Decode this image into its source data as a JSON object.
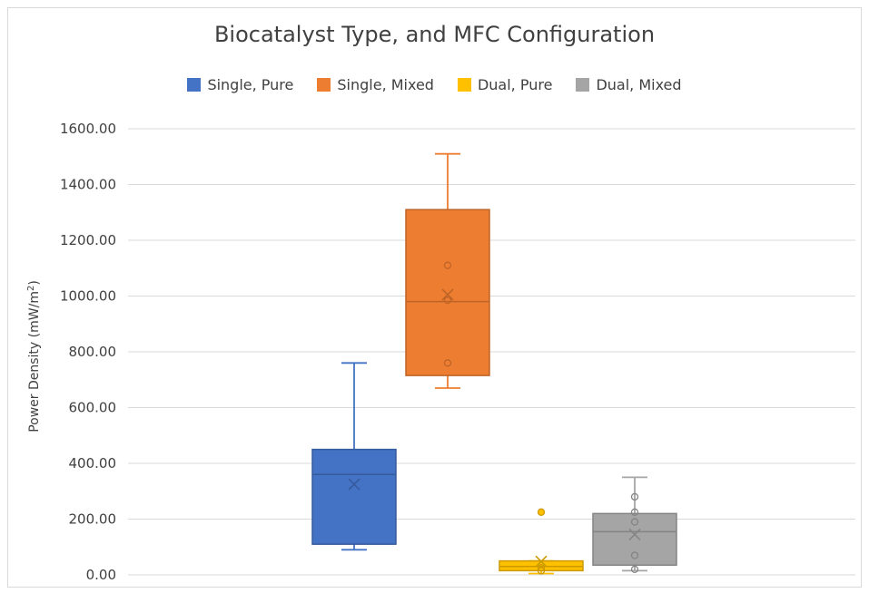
{
  "chart_data": {
    "type": "box",
    "title": "Biocatalyst Type, and MFC Configuration",
    "ylabel": "Power Density (mW/m²)",
    "ylabel_main": "Power Density (mW/m",
    "ylabel_sup": "2",
    "ylabel_end": ")",
    "ylim": [
      0,
      1600
    ],
    "yticks": [
      "0.00",
      "200.00",
      "400.00",
      "600.00",
      "800.00",
      "1000.00",
      "1200.00",
      "1400.00",
      "1600.00"
    ],
    "yticks_values": [
      0,
      200,
      400,
      600,
      800,
      1000,
      1200,
      1400,
      1600
    ],
    "grid": true,
    "legend_position": "top",
    "series": [
      {
        "name": "Single, Pure",
        "color": "#4472C4",
        "min": 90,
        "q1": 110,
        "median": 360,
        "q3": 450,
        "max": 760,
        "mean": 325,
        "points": []
      },
      {
        "name": "Single, Mixed",
        "color": "#ED7D31",
        "min": 670,
        "q1": 715,
        "median": 980,
        "q3": 1310,
        "max": 1510,
        "mean": 1005,
        "points": [
          760,
          985,
          1110
        ]
      },
      {
        "name": "Dual, Pure",
        "color": "#FFC000",
        "min": 5,
        "q1": 15,
        "median": 30,
        "q3": 50,
        "max": 50,
        "mean": 48,
        "points": [
          15,
          25
        ],
        "outliers": [
          225
        ]
      },
      {
        "name": "Dual, Mixed",
        "color": "#A5A5A5",
        "min": 15,
        "q1": 35,
        "median": 155,
        "q3": 220,
        "max": 350,
        "mean": 145,
        "points": [
          20,
          70,
          190,
          225,
          280
        ],
        "outliers": []
      }
    ]
  }
}
